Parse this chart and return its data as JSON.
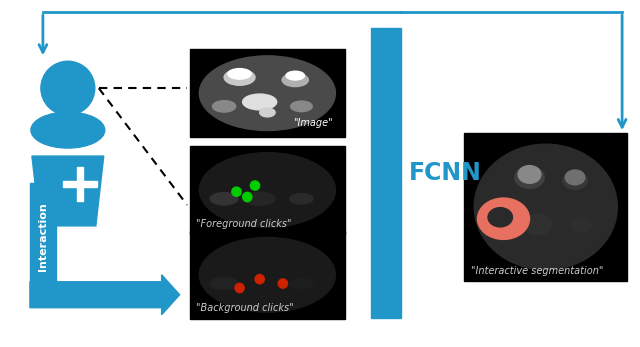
{
  "bg_color": "#ffffff",
  "blue": "#2196C8",
  "fcnn_label": "FCNN",
  "interaction_label": "Interaction",
  "image_label": "\"Image\"",
  "fg_label": "\"Foreground clicks\"",
  "bg_label": "\"Background clicks\"",
  "seg_label": "\"Interactive segmentation\"",
  "fig_width": 6.4,
  "fig_height": 3.47,
  "dpi": 100
}
